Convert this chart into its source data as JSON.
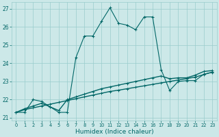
{
  "bg_color": "#cce8e8",
  "grid_color": "#99cccc",
  "line_color": "#006666",
  "xlim": [
    -0.5,
    23.5
  ],
  "ylim": [
    20.85,
    27.35
  ],
  "yticks": [
    21,
    22,
    23,
    24,
    25,
    26,
    27
  ],
  "xticks": [
    0,
    1,
    2,
    3,
    4,
    5,
    6,
    7,
    8,
    9,
    10,
    11,
    12,
    13,
    14,
    15,
    16,
    17,
    18,
    19,
    20,
    21,
    22,
    23
  ],
  "xlabel": "Humidex (Indice chaleur)",
  "line1_x": [
    0,
    1,
    2,
    3,
    4,
    5,
    6,
    7,
    8,
    9,
    10,
    11,
    12,
    13,
    14,
    15,
    16,
    17,
    18,
    19,
    20,
    21,
    22,
    23
  ],
  "line1_y": [
    21.3,
    21.3,
    22.0,
    21.9,
    21.6,
    21.3,
    21.3,
    24.3,
    25.5,
    25.5,
    26.3,
    27.05,
    26.2,
    26.1,
    25.85,
    26.55,
    26.55,
    23.65,
    22.5,
    23.0,
    23.05,
    23.05,
    23.4,
    23.5
  ],
  "line2_x": [
    0,
    1,
    2,
    3,
    4,
    5,
    6,
    7,
    8,
    9,
    10,
    11,
    12,
    13,
    14,
    15,
    16,
    17,
    18,
    19,
    20,
    21,
    22,
    23
  ],
  "line2_y": [
    21.3,
    21.45,
    21.55,
    21.65,
    21.75,
    21.85,
    21.95,
    22.05,
    22.15,
    22.25,
    22.35,
    22.45,
    22.52,
    22.6,
    22.68,
    22.76,
    22.84,
    22.92,
    23.0,
    23.08,
    23.16,
    23.24,
    23.38,
    23.52
  ],
  "line3_x": [
    0,
    1,
    2,
    3,
    4,
    5,
    6,
    7,
    8,
    9,
    10,
    11,
    12,
    13,
    14,
    15,
    16,
    17,
    18,
    19,
    20,
    21,
    22,
    23
  ],
  "line3_y": [
    21.3,
    21.5,
    21.65,
    21.8,
    21.6,
    21.4,
    22.0,
    22.15,
    22.3,
    22.45,
    22.6,
    22.7,
    22.8,
    22.9,
    23.0,
    23.1,
    23.2,
    23.3,
    23.15,
    23.2,
    23.2,
    23.35,
    23.55,
    23.6
  ]
}
